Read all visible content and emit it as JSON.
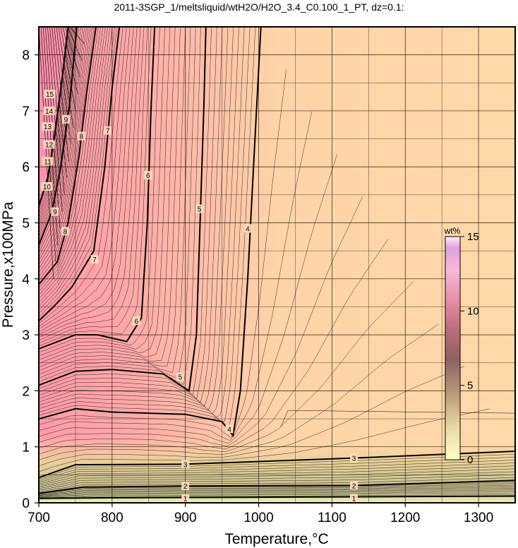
{
  "title": "2011-3SGP_1/meltsliquid/wtH2O/H2O_3.4_C0.100_1_PT, dz=0.1:",
  "chart_data": {
    "type": "heatmap",
    "title": "2011-3SGP_1/meltsliquid/wtH2O/H2O_3.4_C0.100_1_PT, dz=0.1:",
    "xlabel": "Temperature,°C",
    "ylabel": "Pressure,x100MPa",
    "xlim": [
      700,
      1350
    ],
    "ylim": [
      0,
      8.5
    ],
    "x_ticks": [
      "700",
      "800",
      "900",
      "1000",
      "1100",
      "1200",
      "1300"
    ],
    "y_ticks": [
      "0",
      "1",
      "2",
      "3",
      "4",
      "5",
      "6",
      "7",
      "8"
    ],
    "grid": true,
    "colorbar": {
      "title": "wt%",
      "range": [
        0,
        15
      ],
      "ticks": [
        "0",
        "5",
        "10",
        "15"
      ],
      "placement": "right-inside",
      "colors": [
        "#ffffc8",
        "#e8c890",
        "#c89070",
        "#a07070",
        "#d88898",
        "#ffa8c8",
        "#ffd8f0",
        "#fff0ff"
      ]
    },
    "contours": [
      {
        "level": "1",
        "points": [
          [
            700,
            0.08
          ],
          [
            800,
            0.09
          ],
          [
            1000,
            0.1
          ],
          [
            1350,
            0.12
          ]
        ]
      },
      {
        "level": "2",
        "points": [
          [
            700,
            0.17
          ],
          [
            760,
            0.28
          ],
          [
            900,
            0.3
          ],
          [
            1130,
            0.31
          ],
          [
            1350,
            0.4
          ]
        ]
      },
      {
        "level": "3",
        "points": [
          [
            700,
            0.45
          ],
          [
            750,
            0.68
          ],
          [
            900,
            0.69
          ],
          [
            1130,
            0.8
          ],
          [
            1350,
            0.92
          ]
        ]
      },
      {
        "level": "4",
        "points": [
          [
            700,
            1.5
          ],
          [
            750,
            1.68
          ],
          [
            800,
            1.62
          ],
          [
            900,
            1.58
          ],
          [
            950,
            1.45
          ],
          [
            965,
            1.2
          ],
          [
            975,
            2.0
          ],
          [
            985,
            4.0
          ],
          [
            995,
            6.5
          ],
          [
            1003,
            8.5
          ]
        ]
      },
      {
        "level": "5",
        "points": [
          [
            700,
            2.1
          ],
          [
            750,
            2.35
          ],
          [
            800,
            2.38
          ],
          [
            870,
            2.3
          ],
          [
            905,
            2.0
          ],
          [
            915,
            3.0
          ],
          [
            920,
            5.0
          ],
          [
            925,
            7.0
          ],
          [
            928,
            8.5
          ]
        ]
      },
      {
        "level": "6",
        "points": [
          [
            700,
            2.75
          ],
          [
            750,
            3.0
          ],
          [
            780,
            3.0
          ],
          [
            820,
            2.88
          ],
          [
            840,
            3.3
          ],
          [
            848,
            5.0
          ],
          [
            853,
            7.0
          ],
          [
            858,
            8.5
          ]
        ]
      },
      {
        "level": "7",
        "points": [
          [
            700,
            3.25
          ],
          [
            720,
            3.5
          ],
          [
            745,
            3.85
          ],
          [
            775,
            4.5
          ],
          [
            790,
            6.0
          ],
          [
            800,
            7.4
          ],
          [
            810,
            8.5
          ]
        ]
      },
      {
        "level": "8",
        "points": [
          [
            700,
            3.9
          ],
          [
            725,
            4.3
          ],
          [
            740,
            5.0
          ],
          [
            755,
            6.2
          ],
          [
            765,
            7.3
          ],
          [
            778,
            8.5
          ]
        ]
      },
      {
        "level": "9",
        "points": [
          [
            700,
            4.6
          ],
          [
            718,
            5.2
          ],
          [
            730,
            6.0
          ],
          [
            742,
            7.1
          ],
          [
            752,
            8.5
          ]
        ]
      },
      {
        "level": "10",
        "points": [
          [
            700,
            5.3
          ],
          [
            712,
            5.8
          ],
          [
            722,
            6.6
          ],
          [
            732,
            7.6
          ],
          [
            740,
            8.5
          ]
        ]
      }
    ],
    "contour_labels": [
      {
        "text": "1",
        "x": 900,
        "y": 0.08
      },
      {
        "text": "1",
        "x": 1130,
        "y": 0.08
      },
      {
        "text": "2",
        "x": 900,
        "y": 0.3
      },
      {
        "text": "2",
        "x": 1130,
        "y": 0.31
      },
      {
        "text": "3",
        "x": 900,
        "y": 0.69
      },
      {
        "text": "3",
        "x": 1130,
        "y": 0.8
      },
      {
        "text": "4",
        "x": 960,
        "y": 1.32
      },
      {
        "text": "4",
        "x": 985,
        "y": 4.9
      },
      {
        "text": "5",
        "x": 893,
        "y": 2.25
      },
      {
        "text": "5",
        "x": 919,
        "y": 5.25
      },
      {
        "text": "6",
        "x": 833,
        "y": 3.25
      },
      {
        "text": "6",
        "x": 849,
        "y": 5.85
      },
      {
        "text": "7",
        "x": 776,
        "y": 4.35
      },
      {
        "text": "7",
        "x": 794,
        "y": 6.65
      },
      {
        "text": "8",
        "x": 736,
        "y": 4.85
      },
      {
        "text": "8",
        "x": 758,
        "y": 6.55
      },
      {
        "text": "9",
        "x": 722,
        "y": 5.2
      },
      {
        "text": "9",
        "x": 737,
        "y": 6.85
      },
      {
        "text": "10",
        "x": 711,
        "y": 5.65
      },
      {
        "text": "11",
        "x": 712,
        "y": 6.1
      },
      {
        "text": "12",
        "x": 714,
        "y": 6.4
      },
      {
        "text": "13",
        "x": 712,
        "y": 6.72
      },
      {
        "text": "14",
        "x": 714,
        "y": 7.0
      },
      {
        "text": "15",
        "x": 715,
        "y": 7.3
      }
    ]
  }
}
